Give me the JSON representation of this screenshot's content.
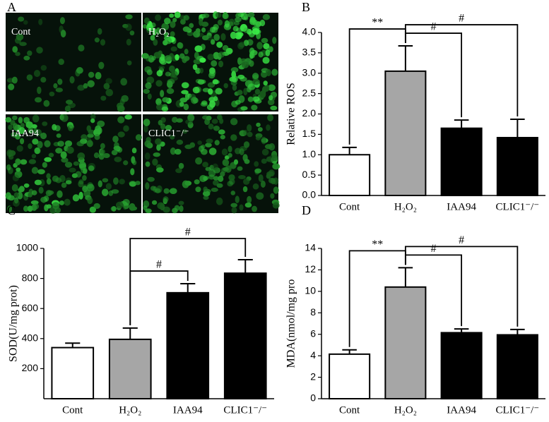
{
  "panel_a": {
    "letter": "A",
    "labels": [
      "Cont",
      "H₂O₂",
      "IAA94",
      "CLIC1⁻/⁻"
    ]
  },
  "chart_data": [
    {
      "type": "bar",
      "letter": "B",
      "y_label": "Relative ROS",
      "categories": [
        "Cont",
        "H₂O₂",
        "IAA94",
        "CLIC1⁻/⁻"
      ],
      "values": [
        1.0,
        3.05,
        1.65,
        1.42
      ],
      "errors": [
        0.18,
        0.62,
        0.2,
        0.45
      ],
      "colors": [
        "#ffffff",
        "#a6a6a6",
        "#000000",
        "#000000"
      ],
      "ylim": [
        0,
        4
      ],
      "yticks": [
        {
          "value": 0,
          "label": "0.0"
        },
        0.5,
        {
          "value": 1,
          "label": "1.0"
        },
        1.5,
        {
          "value": 2,
          "label": "2.0"
        },
        2.5,
        {
          "value": 3,
          "label": "3.0"
        },
        3.5,
        {
          "value": 4,
          "label": "4.0"
        }
      ],
      "annotations": [
        {
          "text": "**",
          "between": [
            0,
            1
          ]
        },
        {
          "text": "#",
          "between": [
            1,
            2
          ]
        },
        {
          "text": "#",
          "between": [
            1,
            3
          ]
        }
      ]
    },
    {
      "type": "bar",
      "letter": "C",
      "y_label": "SOD(U/mg prot)",
      "categories": [
        "Cont",
        "H₂O₂",
        "IAA94",
        "CLIC1⁻/⁻"
      ],
      "values": [
        340,
        395,
        705,
        835
      ],
      "errors": [
        30,
        75,
        60,
        90
      ],
      "colors": [
        "#ffffff",
        "#a6a6a6",
        "#000000",
        "#000000"
      ],
      "ylim": [
        0,
        1000
      ],
      "yticks": [
        200,
        400,
        600,
        800,
        1000
      ],
      "annotations": [
        {
          "text": "#",
          "between": [
            1,
            2
          ]
        },
        {
          "text": "#",
          "between": [
            1,
            3
          ]
        }
      ]
    },
    {
      "type": "bar",
      "letter": "D",
      "y_label": "MDA(nmol/mg pro",
      "categories": [
        "Cont",
        "H₂O₂",
        "IAA94",
        "CLIC1⁻/⁻"
      ],
      "values": [
        4.15,
        10.4,
        6.15,
        5.95
      ],
      "errors": [
        0.4,
        1.8,
        0.35,
        0.5
      ],
      "colors": [
        "#ffffff",
        "#a6a6a6",
        "#000000",
        "#000000"
      ],
      "ylim": [
        0,
        14
      ],
      "yticks": [
        0,
        2,
        4,
        6,
        8,
        10,
        12,
        14
      ],
      "annotations": [
        {
          "text": "**",
          "between": [
            0,
            1
          ]
        },
        {
          "text": "#",
          "between": [
            1,
            2
          ]
        },
        {
          "text": "#",
          "between": [
            1,
            3
          ]
        }
      ]
    }
  ]
}
